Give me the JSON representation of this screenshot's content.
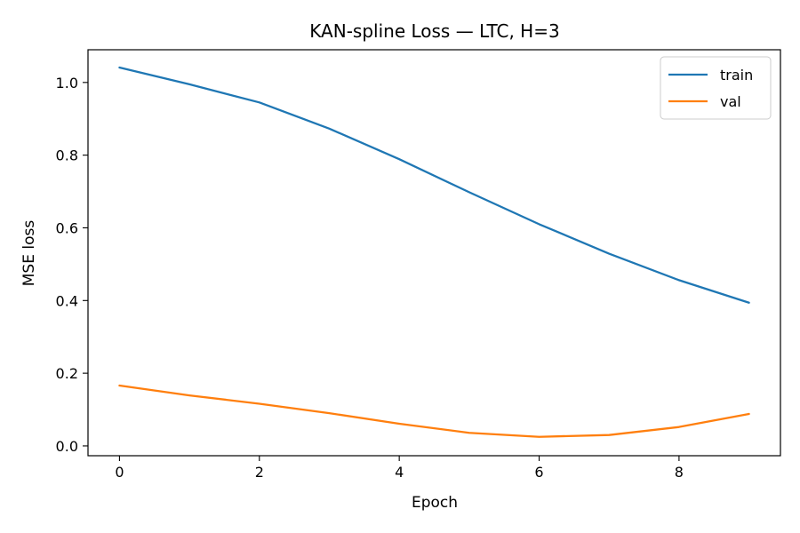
{
  "chart_data": {
    "type": "line",
    "title": "KAN-spline Loss — LTC, H=3",
    "xlabel": "Epoch",
    "ylabel": "MSE loss",
    "x": [
      0,
      1,
      2,
      3,
      4,
      5,
      6,
      7,
      8,
      9
    ],
    "xlim": [
      -0.45,
      9.45
    ],
    "ylim": [
      -0.027,
      1.09
    ],
    "xticks": [
      0,
      2,
      4,
      6,
      8
    ],
    "yticks": [
      0.0,
      0.2,
      0.4,
      0.6,
      0.8,
      1.0
    ],
    "xtick_labels": [
      "0",
      "2",
      "4",
      "6",
      "8"
    ],
    "ytick_labels": [
      "0.0",
      "0.2",
      "0.4",
      "0.6",
      "0.8",
      "1.0"
    ],
    "grid": false,
    "legend_position": "top-right",
    "series": [
      {
        "name": "train",
        "color": "#1f77b4",
        "values": [
          1.041,
          0.995,
          0.945,
          0.873,
          0.789,
          0.698,
          0.61,
          0.529,
          0.456,
          0.394
        ]
      },
      {
        "name": "val",
        "color": "#ff7f0e",
        "values": [
          0.166,
          0.139,
          0.116,
          0.09,
          0.061,
          0.036,
          0.025,
          0.03,
          0.052,
          0.088
        ]
      }
    ]
  }
}
